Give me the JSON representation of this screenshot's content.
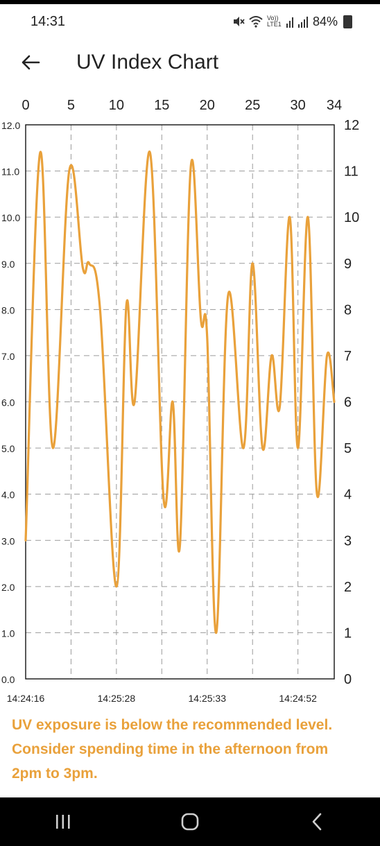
{
  "status_bar": {
    "time": "14:31",
    "network_label": "Vo)) LTE1",
    "battery": "84%",
    "icons": [
      "mute-icon",
      "wifi-icon",
      "signal-icon",
      "battery-icon"
    ]
  },
  "app_bar": {
    "title": "UV Index Chart",
    "back_icon": "arrow-left-icon"
  },
  "chart_data": {
    "type": "line",
    "color": "#e9a13b",
    "x_range": [
      0,
      34
    ],
    "y_range": [
      0,
      12
    ],
    "top_ticks": [
      "0",
      "5",
      "10",
      "15",
      "20",
      "25",
      "30",
      "34"
    ],
    "left_ticks": [
      "0.0",
      "1.0",
      "2.0",
      "3.0",
      "4.0",
      "5.0",
      "6.0",
      "7.0",
      "8.0",
      "9.0",
      "10.0",
      "11.0",
      "12.0"
    ],
    "right_ticks": [
      "0",
      "1",
      "2",
      "3",
      "4",
      "5",
      "6",
      "7",
      "8",
      "9",
      "10",
      "11",
      "12"
    ],
    "bottom_labels": [
      {
        "x": 0,
        "label": "14:24:16"
      },
      {
        "x": 10,
        "label": "14:25:28"
      },
      {
        "x": 20,
        "label": "14:25:33"
      },
      {
        "x": 30,
        "label": "14:24:52"
      }
    ],
    "grid": true,
    "points": [
      {
        "x": 0,
        "y": 3.0
      },
      {
        "x": 1.6,
        "y": 11.4
      },
      {
        "x": 3,
        "y": 5.0
      },
      {
        "x": 4.8,
        "y": 11.0
      },
      {
        "x": 6.3,
        "y": 8.9
      },
      {
        "x": 7,
        "y": 9.0
      },
      {
        "x": 8.2,
        "y": 8.0
      },
      {
        "x": 10,
        "y": 2.0
      },
      {
        "x": 11.1,
        "y": 8.1
      },
      {
        "x": 12,
        "y": 6.0
      },
      {
        "x": 13.7,
        "y": 11.4
      },
      {
        "x": 15.2,
        "y": 3.9
      },
      {
        "x": 16.2,
        "y": 6.0
      },
      {
        "x": 17,
        "y": 2.9
      },
      {
        "x": 18.2,
        "y": 11.1
      },
      {
        "x": 19.3,
        "y": 7.8
      },
      {
        "x": 20,
        "y": 7.4
      },
      {
        "x": 21,
        "y": 1.0
      },
      {
        "x": 22.3,
        "y": 8.3
      },
      {
        "x": 24,
        "y": 5.0
      },
      {
        "x": 25,
        "y": 9.0
      },
      {
        "x": 26.1,
        "y": 5.0
      },
      {
        "x": 27.1,
        "y": 7.0
      },
      {
        "x": 28,
        "y": 5.9
      },
      {
        "x": 29.1,
        "y": 10.0
      },
      {
        "x": 30,
        "y": 5.0
      },
      {
        "x": 31.1,
        "y": 10.0
      },
      {
        "x": 32.1,
        "y": 4.0
      },
      {
        "x": 33.2,
        "y": 7.0
      },
      {
        "x": 34,
        "y": 6.0
      }
    ]
  },
  "message": "UV exposure is below the recommended level. Consider spending time in the afternoon from 2pm to 3pm.",
  "nav_bar": {
    "buttons": [
      "recents-icon",
      "home-icon",
      "back-icon"
    ]
  }
}
